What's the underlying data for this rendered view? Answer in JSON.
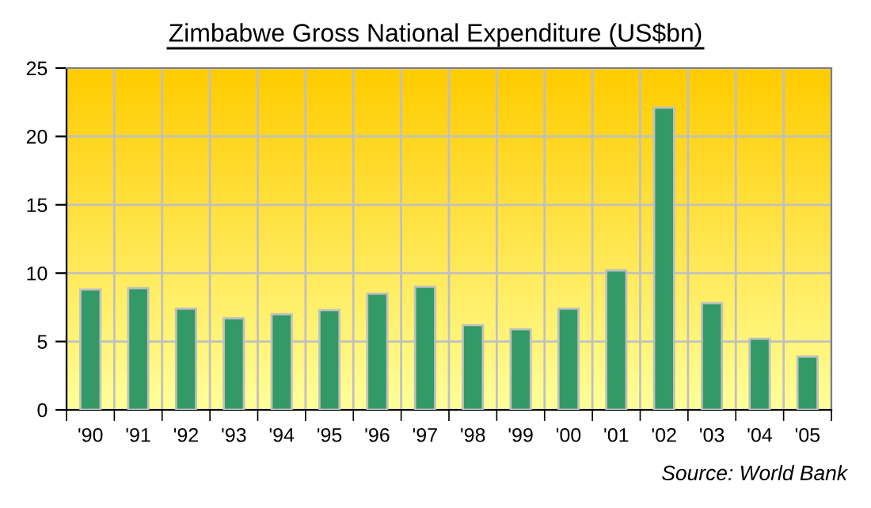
{
  "chart_data": {
    "type": "bar",
    "title": "Zimbabwe Gross National Expenditure (US$bn)",
    "categories": [
      "'90",
      "'91",
      "'92",
      "'93",
      "'94",
      "'95",
      "'96",
      "'97",
      "'98",
      "'99",
      "'00",
      "'01",
      "'02",
      "'03",
      "'04",
      "'05"
    ],
    "values": [
      8.8,
      8.9,
      7.4,
      6.7,
      7.0,
      7.3,
      8.5,
      9.0,
      6.2,
      5.9,
      7.4,
      10.2,
      22.1,
      7.8,
      5.2,
      3.9
    ],
    "color": "#339966",
    "ylim": [
      0,
      25
    ],
    "yticks": [
      0,
      5,
      10,
      15,
      20,
      25
    ],
    "grid": true,
    "legend": false,
    "annotations": [
      "Source: World Bank"
    ]
  }
}
